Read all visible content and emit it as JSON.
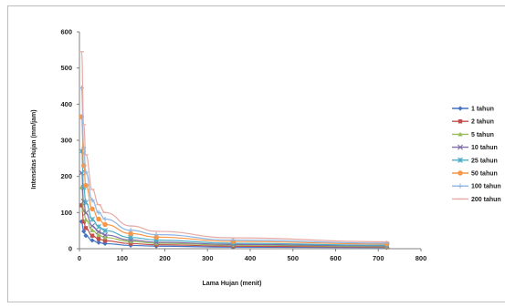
{
  "chart_data": {
    "type": "line",
    "title": "",
    "xlabel": "Lama Hujan (menit)",
    "ylabel": "Intensitas Hujan (mm/jam)",
    "xlim": [
      0,
      800
    ],
    "ylim": [
      0,
      600
    ],
    "xticks": [
      "0",
      "100",
      "200",
      "300",
      "400",
      "500",
      "600",
      "700",
      "800"
    ],
    "yticks": [
      "0",
      "100",
      "200",
      "300",
      "400",
      "500",
      "600"
    ],
    "grid": false,
    "legend": "right",
    "x": [
      5,
      10,
      15,
      30,
      45,
      60,
      120,
      180,
      360,
      720
    ],
    "series": [
      {
        "name": "1 tahun",
        "color": "#4472C4",
        "marker": "diamond",
        "values": [
          75,
          48,
          36,
          23,
          17,
          14,
          9,
          7,
          4.5,
          3
        ]
      },
      {
        "name": "2 tahun",
        "color": "#C0504D",
        "marker": "square",
        "values": [
          120,
          75,
          57,
          36,
          27,
          22,
          14,
          11,
          7,
          4.5
        ]
      },
      {
        "name": "5 tahun",
        "color": "#9BBB59",
        "marker": "triangle",
        "values": [
          170,
          106,
          80,
          51,
          38,
          31,
          20,
          15,
          10,
          6
        ]
      },
      {
        "name": "10 tahun",
        "color": "#7F6CA3",
        "marker": "x",
        "values": [
          210,
          131,
          99,
          63,
          47,
          38,
          24,
          18,
          12,
          7.5
        ]
      },
      {
        "name": "25 tahun",
        "color": "#4BACC6",
        "marker": "star",
        "values": [
          270,
          170,
          128,
          81,
          61,
          50,
          31,
          24,
          15,
          9.5
        ]
      },
      {
        "name": "50 tahun",
        "color": "#F79646",
        "marker": "circle",
        "values": [
          365,
          230,
          175,
          110,
          82,
          67,
          42,
          32,
          20,
          13
        ]
      },
      {
        "name": "100 tahun",
        "color": "#8EB4E3",
        "marker": "plus",
        "values": [
          445,
          280,
          212,
          134,
          100,
          82,
          51,
          39,
          24,
          15.5
        ]
      },
      {
        "name": "200 tahun",
        "color": "#E6A9A4",
        "marker": "dash",
        "values": [
          545,
          343,
          260,
          164,
          122,
          100,
          63,
          48,
          30,
          19
        ]
      }
    ]
  }
}
